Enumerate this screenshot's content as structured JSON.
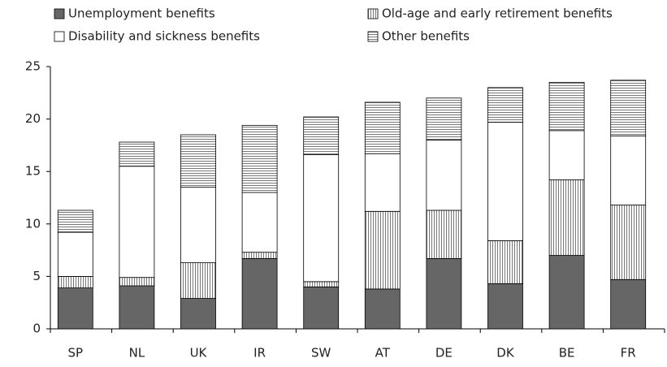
{
  "chart_data": {
    "type": "stacked_bar",
    "categories": [
      "SP",
      "NL",
      "UK",
      "IR",
      "SW",
      "AT",
      "DE",
      "DK",
      "BE",
      "FR"
    ],
    "series": [
      {
        "name": "Unemployment benefits",
        "color": "#666666",
        "hatch": null,
        "values": [
          3.9,
          4.1,
          2.9,
          6.7,
          4.0,
          3.8,
          6.7,
          4.3,
          7.0,
          4.7
        ]
      },
      {
        "name": "Old-age and early retirement benefits",
        "color": "#ffffff",
        "hatch": "vertical",
        "values": [
          1.1,
          0.8,
          3.4,
          0.6,
          0.5,
          7.4,
          4.6,
          4.1,
          7.2,
          7.1
        ]
      },
      {
        "name": "Disability and sickness benefits",
        "color": "#ffffff",
        "hatch": null,
        "values": [
          4.2,
          10.6,
          7.2,
          5.7,
          12.1,
          5.5,
          6.7,
          11.3,
          4.7,
          6.6
        ]
      },
      {
        "name": "Other benefits",
        "color": "#ffffff",
        "hatch": "horizontal",
        "values": [
          2.1,
          2.3,
          5.0,
          6.4,
          3.6,
          4.9,
          4.0,
          3.3,
          4.6,
          5.3
        ]
      }
    ],
    "ylim": [
      0,
      25
    ],
    "yticks": [
      0,
      5,
      10,
      15,
      20,
      25
    ],
    "grid": false
  }
}
